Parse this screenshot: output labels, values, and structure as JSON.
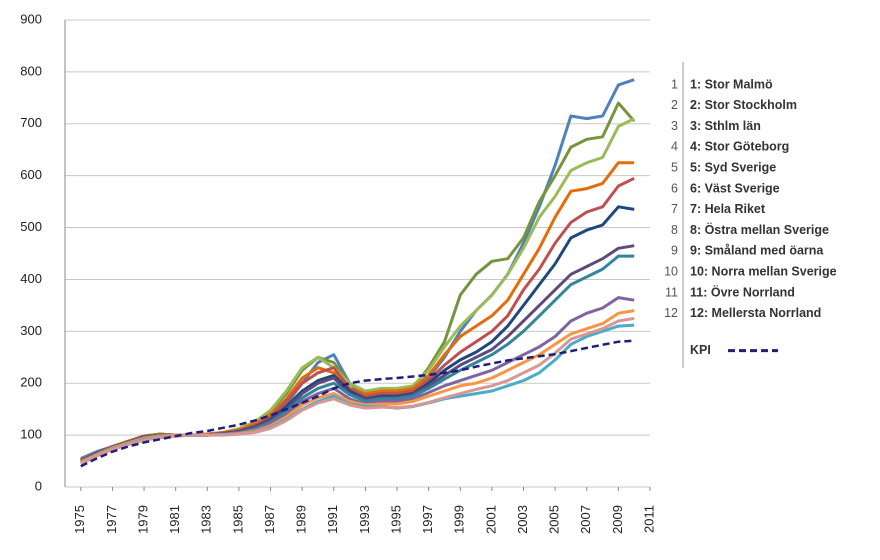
{
  "chart_data": {
    "type": "line",
    "x": [
      1975,
      1976,
      1977,
      1978,
      1979,
      1980,
      1981,
      1982,
      1983,
      1984,
      1985,
      1986,
      1987,
      1988,
      1989,
      1990,
      1991,
      1992,
      1993,
      1994,
      1995,
      1996,
      1997,
      1998,
      1999,
      2000,
      2001,
      2002,
      2003,
      2004,
      2005,
      2006,
      2007,
      2008,
      2009,
      2010
    ],
    "xlim": [
      1974,
      2011
    ],
    "xticks": [
      1975,
      1977,
      1979,
      1981,
      1983,
      1985,
      1987,
      1989,
      1991,
      1993,
      1995,
      1997,
      1999,
      2001,
      2003,
      2005,
      2007,
      2009,
      2011
    ],
    "ylim": [
      0,
      900
    ],
    "yticks": [
      0,
      100,
      200,
      300,
      400,
      500,
      600,
      700,
      800,
      900
    ],
    "grid": true,
    "legend_numbers": [
      "1",
      "2",
      "3",
      "4",
      "5",
      "6",
      "7",
      "8",
      "9",
      "10",
      "11",
      "12"
    ],
    "series": [
      {
        "name": "1: Stor Malmö",
        "color": "#4f81bd",
        "values": [
          55,
          68,
          78,
          88,
          98,
          102,
          100,
          100,
          102,
          105,
          110,
          120,
          135,
          160,
          200,
          240,
          255,
          200,
          175,
          180,
          185,
          190,
          210,
          250,
          300,
          340,
          370,
          410,
          470,
          540,
          620,
          715,
          710,
          715,
          775,
          785
        ]
      },
      {
        "name": "2: Stor Stockholm",
        "color": "#77933c",
        "values": [
          50,
          65,
          78,
          88,
          98,
          102,
          100,
          100,
          102,
          105,
          112,
          125,
          145,
          180,
          225,
          250,
          240,
          200,
          180,
          185,
          185,
          190,
          230,
          280,
          370,
          410,
          435,
          440,
          480,
          550,
          600,
          655,
          670,
          675,
          740,
          705
        ]
      },
      {
        "name": "3: Sthlm län",
        "color": "#9bbb59",
        "values": [
          50,
          65,
          78,
          88,
          98,
          102,
          100,
          100,
          102,
          105,
          112,
          125,
          148,
          185,
          230,
          250,
          230,
          200,
          185,
          190,
          190,
          195,
          225,
          270,
          310,
          340,
          370,
          410,
          460,
          520,
          560,
          610,
          625,
          635,
          695,
          710
        ]
      },
      {
        "name": "4: Stor Göteborg",
        "color": "#e46c0a",
        "values": [
          52,
          65,
          78,
          88,
          98,
          102,
          100,
          100,
          102,
          105,
          110,
          122,
          140,
          170,
          210,
          230,
          220,
          190,
          180,
          185,
          185,
          190,
          215,
          255,
          290,
          310,
          330,
          360,
          410,
          460,
          520,
          570,
          575,
          585,
          625,
          625
        ]
      },
      {
        "name": "5: Syd Sverige",
        "color": "#c0504d",
        "values": [
          52,
          66,
          78,
          88,
          98,
          100,
          100,
          100,
          100,
          104,
          108,
          118,
          135,
          165,
          200,
          220,
          230,
          190,
          175,
          180,
          180,
          185,
          205,
          235,
          260,
          280,
          300,
          330,
          380,
          420,
          470,
          510,
          530,
          540,
          580,
          595
        ]
      },
      {
        "name": "6: Väst Sverige",
        "color": "#1f497d",
        "values": [
          50,
          65,
          76,
          86,
          96,
          100,
          100,
          100,
          100,
          103,
          107,
          116,
          130,
          155,
          185,
          205,
          215,
          185,
          170,
          175,
          175,
          180,
          200,
          225,
          245,
          260,
          280,
          310,
          350,
          390,
          430,
          480,
          495,
          505,
          540,
          535
        ]
      },
      {
        "name": "7: Hela Riket",
        "color": "#604a7b",
        "values": [
          50,
          64,
          76,
          86,
          95,
          100,
          100,
          100,
          100,
          103,
          106,
          115,
          128,
          150,
          180,
          200,
          210,
          180,
          168,
          172,
          172,
          178,
          195,
          215,
          235,
          250,
          265,
          290,
          320,
          350,
          380,
          410,
          425,
          440,
          460,
          465
        ]
      },
      {
        "name": "8: Östra mellan Sverige",
        "color": "#31859c",
        "values": [
          50,
          64,
          76,
          86,
          95,
          100,
          100,
          100,
          100,
          102,
          105,
          112,
          125,
          145,
          172,
          190,
          200,
          178,
          165,
          170,
          170,
          175,
          190,
          208,
          225,
          240,
          255,
          275,
          300,
          330,
          360,
          390,
          405,
          420,
          445,
          445
        ]
      },
      {
        "name": "9: Småland med öarna",
        "color": "#8064a2",
        "values": [
          48,
          62,
          75,
          85,
          94,
          98,
          100,
          100,
          100,
          102,
          104,
          110,
          122,
          140,
          165,
          180,
          190,
          170,
          160,
          165,
          165,
          170,
          182,
          195,
          205,
          215,
          225,
          240,
          255,
          270,
          290,
          320,
          335,
          345,
          365,
          360
        ]
      },
      {
        "name": "10: Norra mellan Sverige",
        "color": "#f79646",
        "values": [
          48,
          62,
          75,
          85,
          94,
          98,
          100,
          100,
          100,
          101,
          103,
          108,
          118,
          135,
          158,
          172,
          180,
          165,
          158,
          160,
          160,
          165,
          175,
          185,
          195,
          200,
          210,
          225,
          240,
          255,
          275,
          295,
          305,
          315,
          335,
          340
        ]
      },
      {
        "name": "11: Övre Norrland",
        "color": "#4bacc6",
        "values": [
          45,
          60,
          73,
          83,
          92,
          96,
          98,
          100,
          100,
          101,
          102,
          106,
          115,
          130,
          150,
          165,
          175,
          160,
          155,
          155,
          152,
          155,
          162,
          170,
          175,
          180,
          185,
          195,
          205,
          220,
          245,
          275,
          290,
          300,
          310,
          312
        ]
      },
      {
        "name": "12: Mellersta Norrland",
        "color": "#d99694",
        "values": [
          45,
          60,
          72,
          82,
          90,
          95,
          98,
          100,
          100,
          100,
          102,
          105,
          113,
          128,
          148,
          162,
          170,
          158,
          152,
          154,
          153,
          156,
          163,
          172,
          180,
          188,
          195,
          205,
          220,
          235,
          258,
          285,
          295,
          305,
          320,
          325
        ]
      },
      {
        "name": "KPI",
        "color": "#1f1f7a",
        "dashed": true,
        "values": [
          40,
          55,
          68,
          78,
          86,
          92,
          98,
          104,
          108,
          114,
          120,
          128,
          138,
          150,
          162,
          175,
          190,
          200,
          205,
          208,
          210,
          213,
          216,
          220,
          225,
          232,
          238,
          244,
          248,
          252,
          256,
          262,
          268,
          274,
          280,
          282
        ]
      }
    ]
  }
}
